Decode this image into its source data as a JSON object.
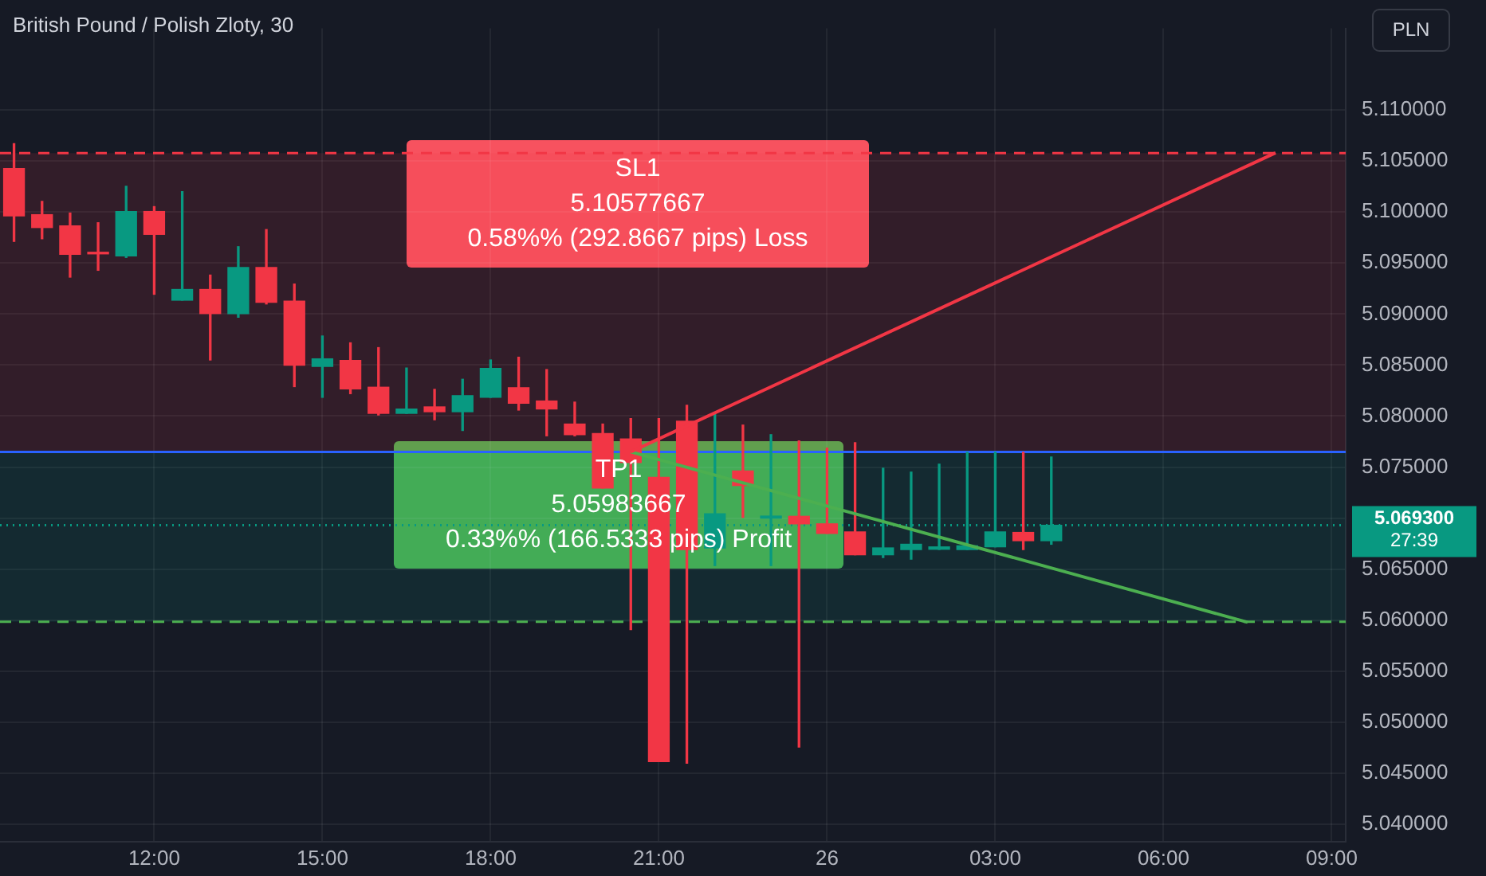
{
  "chart_data": {
    "type": "candlestick",
    "title": "British Pound / Polish Zloty, 30",
    "categories": [
      null,
      null,
      null,
      null,
      null,
      "12:00",
      null,
      null,
      null,
      null,
      null,
      "15:00",
      null,
      null,
      null,
      null,
      null,
      "18:00",
      null,
      null,
      null,
      null,
      null,
      "21:00",
      null,
      null,
      null,
      null,
      null,
      "26",
      null,
      null,
      null,
      null,
      null,
      "03:00",
      null,
      null,
      null,
      null,
      null,
      "06:00",
      null,
      null,
      null,
      null,
      null,
      "09:00"
    ],
    "ohlc": [
      [
        5.10425,
        5.1067,
        5.09712,
        5.09963
      ],
      [
        5.09974,
        5.10104,
        5.09738,
        5.09848
      ],
      [
        5.09864,
        5.0999,
        5.09362,
        5.09586
      ],
      [
        5.09593,
        5.09895,
        5.09429,
        5.0959
      ],
      [
        5.0957,
        5.10252,
        5.09555,
        5.10005
      ],
      [
        5.10005,
        5.10053,
        5.09194,
        5.09781
      ],
      [
        5.09136,
        5.10199,
        5.09136,
        5.09241
      ],
      [
        5.09241,
        5.09382,
        5.0855,
        5.09005
      ],
      [
        5.09005,
        5.0966,
        5.08969,
        5.09456
      ],
      [
        5.09456,
        5.09828,
        5.09099,
        5.09115
      ],
      [
        5.09126,
        5.09294,
        5.08289,
        5.08498
      ],
      [
        5.08487,
        5.08785,
        5.08184,
        5.08561
      ],
      [
        5.08545,
        5.08718,
        5.0822,
        5.08267
      ],
      [
        5.08283,
        5.08671,
        5.08011,
        5.08027
      ],
      [
        5.08027,
        5.08471,
        5.08027,
        5.08069
      ],
      [
        5.0809,
        5.08262,
        5.07964,
        5.08043
      ],
      [
        5.08043,
        5.08361,
        5.07859,
        5.082
      ],
      [
        5.08184,
        5.0855,
        5.08184,
        5.08467
      ],
      [
        5.08278,
        5.08577,
        5.08059,
        5.08126
      ],
      [
        5.08148,
        5.08456,
        5.07807,
        5.0807
      ],
      [
        5.07922,
        5.08137,
        5.07807,
        5.07818
      ],
      [
        5.07828,
        5.07922,
        5.07294,
        5.07294
      ],
      [
        5.07776,
        5.07975,
        5.05907,
        5.07545
      ],
      [
        5.07399,
        5.07975,
        5.04615,
        5.04615
      ],
      [
        5.07949,
        5.08106,
        5.04599,
        5.06692
      ],
      [
        5.06707,
        5.08016,
        5.06535,
        5.07042
      ],
      [
        5.07462,
        5.07912,
        5.07007,
        5.0732
      ],
      [
        5.07,
        5.07818,
        5.06535,
        5.0702
      ],
      [
        5.07018,
        5.07756,
        5.04757,
        5.06944
      ],
      [
        5.06944,
        5.07686,
        5.0685,
        5.0685
      ],
      [
        5.06865,
        5.0774,
        5.06641,
        5.06641
      ],
      [
        5.06641,
        5.07489,
        5.06614,
        5.06708
      ],
      [
        5.06692,
        5.07451,
        5.06598,
        5.06744
      ],
      [
        5.06695,
        5.07529,
        5.06693,
        5.06718
      ],
      [
        5.06692,
        5.07646,
        5.06692,
        5.06729
      ],
      [
        5.06719,
        5.07646,
        5.06719,
        5.06865
      ],
      [
        5.0686,
        5.07646,
        5.06692,
        5.06779
      ],
      [
        5.06779,
        5.07599,
        5.06744,
        5.0693
      ],
      null,
      null,
      null,
      null,
      null,
      null,
      null,
      null,
      null,
      null
    ],
    "colors": [
      "#f23645",
      "#f23645",
      "#f23645",
      "#f23645",
      "#089981",
      "#f23645",
      "#089981",
      "#f23645",
      "#089981",
      "#f23645",
      "#f23645",
      "#089981",
      "#f23645",
      "#f23645",
      "#089981",
      "#f23645",
      "#089981",
      "#089981",
      "#f23645",
      "#f23645",
      "#f23645",
      "#f23645",
      "#f23645",
      "#f23645",
      "#f23645",
      "#089981",
      "#f23645",
      "#089981",
      "#f23645",
      "#f23645",
      "#f23645",
      "#089981",
      "#089981",
      "#089981",
      "#089981",
      "#089981",
      "#f23645",
      "#089981",
      null,
      null,
      null,
      null,
      null,
      null,
      null,
      null,
      null,
      null
    ],
    "series": [
      {
        "type": "line",
        "color": "#f23645",
        "values": [
          null,
          null,
          null,
          null,
          null,
          null,
          null,
          null,
          null,
          null,
          null,
          null,
          null,
          null,
          null,
          null,
          null,
          null,
          null,
          null,
          null,
          null,
          5.0765,
          null,
          null,
          null,
          null,
          null,
          null,
          null,
          null,
          null,
          null,
          null,
          null,
          null,
          null,
          null,
          null,
          null,
          null,
          null,
          null,
          null,
          null,
          5.1058,
          null,
          null
        ]
      },
      {
        "type": "line",
        "color": "#4caf50",
        "values": [
          null,
          null,
          null,
          null,
          null,
          null,
          null,
          null,
          null,
          null,
          null,
          null,
          null,
          null,
          null,
          null,
          null,
          null,
          null,
          null,
          null,
          null,
          5.0765,
          null,
          null,
          null,
          null,
          null,
          null,
          null,
          null,
          null,
          null,
          null,
          null,
          null,
          null,
          null,
          null,
          null,
          null,
          null,
          null,
          null,
          5.0598,
          null,
          null,
          null
        ]
      }
    ],
    "ylim": [
      5.0383,
      5.118
    ],
    "yticks": [
      {
        "value": 5.04,
        "label": "5.040000"
      },
      {
        "value": 5.045,
        "label": "5.045000"
      },
      {
        "value": 5.05,
        "label": "5.050000"
      },
      {
        "value": 5.055,
        "label": "5.055000"
      },
      {
        "value": 5.06,
        "label": "5.060000"
      },
      {
        "value": 5.065,
        "label": "5.065000"
      },
      {
        "value": 5.07,
        "label": null
      },
      {
        "value": 5.075,
        "label": "5.075000"
      },
      {
        "value": 5.08,
        "label": "5.080000"
      },
      {
        "value": 5.085,
        "label": "5.085000"
      },
      {
        "value": 5.09,
        "label": "5.090000"
      },
      {
        "value": 5.095,
        "label": "5.095000"
      },
      {
        "value": 5.1,
        "label": "5.100000"
      },
      {
        "value": 5.105,
        "label": "5.105000"
      },
      {
        "value": 5.11,
        "label": "5.110000"
      }
    ],
    "grid": true,
    "legend": false,
    "ref_lines": [
      {
        "axis": "y",
        "value": 5.10577667,
        "color": "#f23645",
        "line_style": "dashed"
      },
      {
        "axis": "y",
        "value": 5.07649,
        "color": "#2962ff",
        "line_style": "solid"
      },
      {
        "axis": "y",
        "value": 5.05983667,
        "color": "#4caf50",
        "line_style": "dashed"
      },
      {
        "axis": "y",
        "value": 5.0693,
        "label": "5.069300",
        "color": "#089981",
        "line_style": "dotted"
      }
    ],
    "bands": [
      {
        "axis": "y",
        "from": 5.07649,
        "to": 5.10577667,
        "color": "#f23645"
      },
      {
        "axis": "y",
        "from": 5.05983667,
        "to": 5.07649,
        "color": "#089981"
      }
    ],
    "annotations": [
      "SL1\n5.10577667\n0.58%% (292.8667 pips) Loss",
      "TP1\n5.05983667\n0.33%% (166.5333 pips) Profit",
      "27:39",
      "PLN"
    ]
  }
}
